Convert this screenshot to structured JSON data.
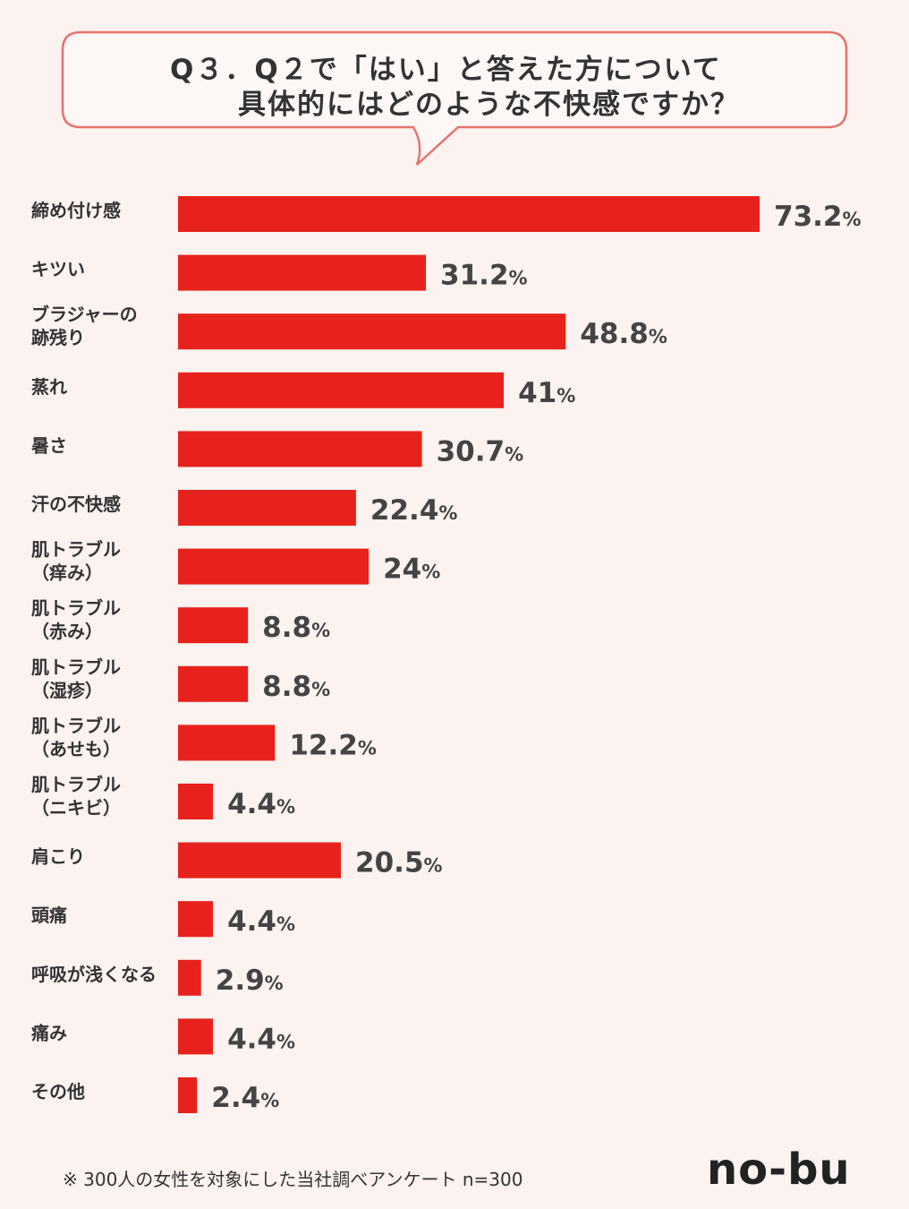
{
  "question": {
    "line1": "Q３．Q２で「はい」と答えた方について",
    "line2": "具体的にはどのような不快感ですか？"
  },
  "colors": {
    "bar": "#e7221c",
    "background": "#fcf3f0",
    "bubble_border": "#e6736c",
    "bubble_fill": "#fdf7f5",
    "text": "#333333",
    "value_text": "#444444"
  },
  "chart_data": {
    "type": "bar",
    "orientation": "horizontal",
    "categories": [
      [
        "締め付け感"
      ],
      [
        "キツい"
      ],
      [
        "ブラジャーの",
        "跡残り"
      ],
      [
        "蒸れ"
      ],
      [
        "暑さ"
      ],
      [
        "汗の不快感"
      ],
      [
        "肌トラブル",
        "（痒み）"
      ],
      [
        "肌トラブル",
        "（赤み）"
      ],
      [
        "肌トラブル",
        "（湿疹）"
      ],
      [
        "肌トラブル",
        "（あせも）"
      ],
      [
        "肌トラブル",
        "（ニキビ）"
      ],
      [
        "肩こり"
      ],
      [
        "頭痛"
      ],
      [
        "呼吸が浅くなる"
      ],
      [
        "痛み"
      ],
      [
        "その他"
      ]
    ],
    "values": [
      73.2,
      31.2,
      48.8,
      41,
      30.7,
      22.4,
      24,
      8.8,
      8.8,
      12.2,
      4.4,
      20.5,
      4.4,
      2.9,
      4.4,
      2.4
    ],
    "value_labels": [
      "73.2",
      "31.2",
      "48.8",
      "41",
      "30.7",
      "22.4",
      "24",
      "8.8",
      "8.8",
      "12.2",
      "4.4",
      "20.5",
      "4.4",
      "2.9",
      "4.4",
      "2.4"
    ],
    "unit": "%",
    "xlim": [
      0,
      73.2
    ],
    "grid": false,
    "legend": "none"
  },
  "footnote": "※ 300人の女性を対象にした当社調べアンケート n=300",
  "logo": "no-bu"
}
